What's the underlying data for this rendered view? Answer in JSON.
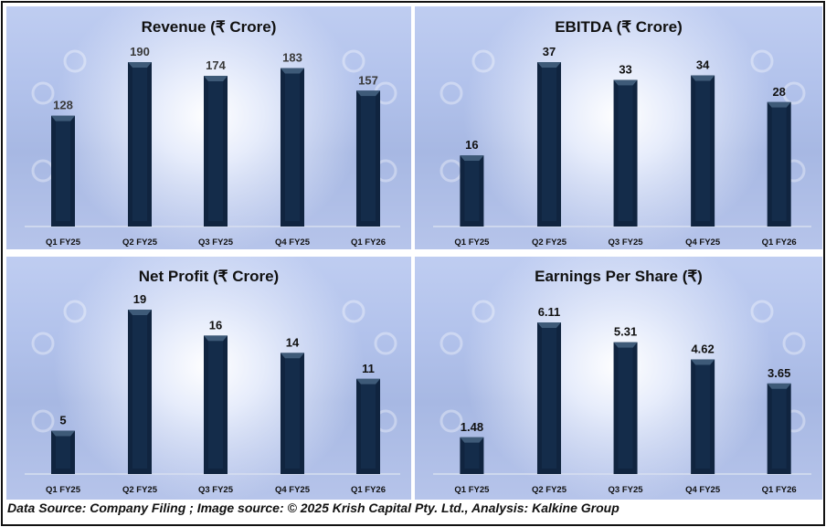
{
  "chart_data": [
    {
      "type": "bar",
      "title": "Revenue (₹ Crore)",
      "categories": [
        "Q1 FY25",
        "Q2 FY25",
        "Q3 FY25",
        "Q4 FY25",
        "Q1 FY26"
      ],
      "values": [
        128,
        190,
        174,
        183,
        157
      ],
      "labels": [
        "128",
        "190",
        "174",
        "183",
        "157"
      ],
      "label_color": "#3a3a3a",
      "xlabel": "",
      "ylabel": "",
      "grid": false
    },
    {
      "type": "bar",
      "title": "EBITDA (₹ Crore)",
      "categories": [
        "Q1 FY25",
        "Q2 FY25",
        "Q3 FY25",
        "Q4 FY25",
        "Q1 FY26"
      ],
      "values": [
        16,
        37,
        33,
        34,
        28
      ],
      "labels": [
        "16",
        "37",
        "33",
        "34",
        "28"
      ],
      "label_color": "#111111",
      "xlabel": "",
      "ylabel": "",
      "grid": false
    },
    {
      "type": "bar",
      "title": "Net Profit (₹ Crore)",
      "categories": [
        "Q1 FY25",
        "Q2 FY25",
        "Q3 FY25",
        "Q4 FY25",
        "Q1 FY26"
      ],
      "values": [
        5,
        19,
        16,
        14,
        11
      ],
      "labels": [
        "5",
        "19",
        "16",
        "14",
        "11"
      ],
      "label_color": "#111111",
      "xlabel": "",
      "ylabel": "",
      "grid": false
    },
    {
      "type": "bar",
      "title": "Earnings Per Share (₹)",
      "categories": [
        "Q1 FY25",
        "Q2 FY25",
        "Q3 FY25",
        "Q4 FY25",
        "Q1 FY26"
      ],
      "values": [
        1.48,
        6.11,
        5.31,
        4.62,
        3.65
      ],
      "labels": [
        "1.48",
        "6.11",
        "5.31",
        "4.62",
        "3.65"
      ],
      "label_color": "#111111",
      "xlabel": "",
      "ylabel": "",
      "grid": false
    }
  ],
  "colors": {
    "bar": "#10243f",
    "bar_top": "#3e5a78",
    "axis": "#d8dff0"
  },
  "footer": "Data Source: Company Filing ; Image source: © 2025 Krish Capital Pty. Ltd., Analysis: Kalkine Group"
}
